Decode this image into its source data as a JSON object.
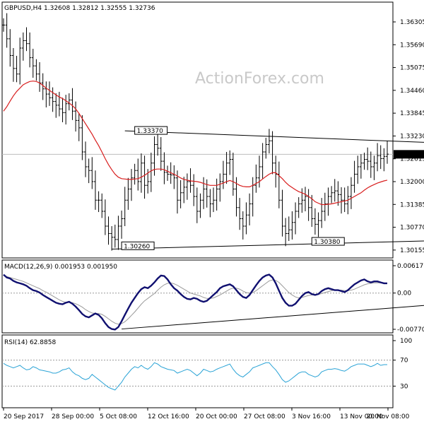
{
  "watermark": "ActionForex.com",
  "chart_data": [
    {
      "type": "line",
      "panel": "price",
      "title": "GBPUSD,H4  1.32608 1.32812 1.32555 1.32736",
      "symbol": "GBPUSD",
      "timeframe": "H4",
      "ohlc": {
        "open": 1.32608,
        "high": 1.32812,
        "low": 1.32555,
        "close": 1.32736
      },
      "current_price_label": "1.32736",
      "ylim": [
        1.3,
        1.368
      ],
      "y_ticks": [
        "1.36305",
        "1.35690",
        "1.35075",
        "1.34460",
        "1.33845",
        "1.33230",
        "1.32615",
        "1.32000",
        "1.31385",
        "1.30770",
        "1.30155"
      ],
      "x_ticks": [
        "20 Sep 2017",
        "28 Sep 00:00",
        "5 Oct 08:00",
        "12 Oct 16:00",
        "20 Oct 00:00",
        "27 Oct 08:00",
        "3 Nov 16:00",
        "13 Nov 00:00",
        "20 Nov 08:00"
      ],
      "annotations": [
        {
          "text": "1.33370",
          "x": 40,
          "y": 1.3337
        },
        {
          "text": "1.30260",
          "x": 36,
          "y": 1.3026
        },
        {
          "text": "1.30380",
          "x": 94,
          "y": 1.3038
        }
      ],
      "trendlines": [
        {
          "name": "upper",
          "points": [
            [
              37,
              1.3337
            ],
            [
              137,
              1.3303
            ]
          ]
        },
        {
          "name": "lower",
          "points": [
            [
              33,
              1.3018
            ],
            [
              137,
              1.3042
            ]
          ]
        }
      ],
      "price_series": [
        1.3622,
        1.3585,
        1.354,
        1.3505,
        1.349,
        1.356,
        1.358,
        1.3572,
        1.3534,
        1.3512,
        1.349,
        1.3466,
        1.345,
        1.3436,
        1.3426,
        1.3416,
        1.3406,
        1.3396,
        1.3386,
        1.341,
        1.342,
        1.339,
        1.3365,
        1.3345,
        1.328,
        1.324,
        1.323,
        1.32,
        1.315,
        1.315,
        1.312,
        1.308,
        1.306,
        1.305,
        1.3044,
        1.308,
        1.31,
        1.315,
        1.318,
        1.321,
        1.323,
        1.32,
        1.325,
        1.319,
        1.32,
        1.325,
        1.33,
        1.329,
        1.3255,
        1.3225,
        1.322,
        1.3218,
        1.321,
        1.315,
        1.317,
        1.3185,
        1.32,
        1.319,
        1.316,
        1.312,
        1.315,
        1.318,
        1.316,
        1.314,
        1.315,
        1.318,
        1.32,
        1.322,
        1.325,
        1.326,
        1.318,
        1.313,
        1.31,
        1.308,
        1.311,
        1.314,
        1.319,
        1.321,
        1.324,
        1.328,
        1.33,
        1.331,
        1.325,
        1.322,
        1.315,
        1.308,
        1.306,
        1.307,
        1.309,
        1.312,
        1.314,
        1.315,
        1.316,
        1.313,
        1.31,
        1.3085,
        1.3095,
        1.312,
        1.314,
        1.316,
        1.317,
        1.3175,
        1.3165,
        1.315,
        1.314,
        1.316,
        1.319,
        1.322,
        1.324,
        1.325,
        1.326,
        1.3255,
        1.324,
        1.325,
        1.327,
        1.3262,
        1.3268,
        1.3274
      ],
      "ma_series": [
        1.339,
        1.3402,
        1.3417,
        1.3431,
        1.3443,
        1.3452,
        1.3461,
        1.3466,
        1.347,
        1.3471,
        1.347,
        1.3466,
        1.3459,
        1.3452,
        1.3446,
        1.344,
        1.3434,
        1.3428,
        1.3424,
        1.3418,
        1.3412,
        1.3405,
        1.3396,
        1.3384,
        1.337,
        1.3356,
        1.3342,
        1.3328,
        1.3312,
        1.3297,
        1.328,
        1.3262,
        1.3246,
        1.3232,
        1.322,
        1.3212,
        1.3208,
        1.3207,
        1.3206,
        1.3206,
        1.3207,
        1.3208,
        1.3212,
        1.3217,
        1.3223,
        1.3229,
        1.3233,
        1.3234,
        1.3234,
        1.3232,
        1.3228,
        1.3224,
        1.322,
        1.3215,
        1.321,
        1.3206,
        1.3204,
        1.3202,
        1.3201,
        1.32,
        1.3198,
        1.3195,
        1.3192,
        1.319,
        1.319,
        1.319,
        1.3193,
        1.3196,
        1.32,
        1.3203,
        1.32,
        1.3195,
        1.319,
        1.3187,
        1.3186,
        1.3186,
        1.319,
        1.3195,
        1.32,
        1.3207,
        1.3214,
        1.322,
        1.3224,
        1.3224,
        1.3216,
        1.3208,
        1.3198,
        1.319,
        1.3184,
        1.3178,
        1.3173,
        1.317,
        1.3166,
        1.316,
        1.3154,
        1.3146,
        1.3142,
        1.3138,
        1.3138,
        1.3139,
        1.314,
        1.3142,
        1.3144,
        1.3146,
        1.3148,
        1.315,
        1.3155,
        1.316,
        1.3165,
        1.317,
        1.3177,
        1.3183,
        1.3188,
        1.3192,
        1.3196,
        1.3199,
        1.3202,
        1.3204
      ]
    },
    {
      "type": "line",
      "panel": "macd",
      "title": "MACD(12,26,9) 0.001953 0.001950",
      "y_ticks": [
        "0.006177",
        "0.00",
        "-0.007704"
      ],
      "ylim": [
        -0.0079,
        0.0065
      ],
      "macd_series": [
        0.0038,
        0.0032,
        0.003,
        0.0025,
        0.0022,
        0.002,
        0.0018,
        0.0015,
        0.001,
        0.0006,
        0.0004,
        0.0001,
        -0.0004,
        -0.0008,
        -0.0012,
        -0.0016,
        -0.002,
        -0.0022,
        -0.0023,
        -0.002,
        -0.0018,
        -0.0022,
        -0.0028,
        -0.0035,
        -0.0043,
        -0.0048,
        -0.005,
        -0.0046,
        -0.0042,
        -0.0045,
        -0.0052,
        -0.0062,
        -0.007,
        -0.0074,
        -0.0075,
        -0.007,
        -0.0058,
        -0.0045,
        -0.0032,
        -0.002,
        -0.001,
        0.0,
        0.0008,
        0.0012,
        0.001,
        0.0015,
        0.0022,
        0.003,
        0.0036,
        0.0035,
        0.0028,
        0.0018,
        0.001,
        0.0005,
        -0.0002,
        -0.0008,
        -0.0012,
        -0.0013,
        -0.001,
        -0.0012,
        -0.0016,
        -0.0018,
        -0.0016,
        -0.001,
        -0.0004,
        0.0002,
        0.001,
        0.0014,
        0.0016,
        0.0018,
        0.0014,
        0.0006,
        -0.0002,
        -0.0008,
        -0.001,
        -0.0004,
        0.0006,
        0.0016,
        0.0025,
        0.0032,
        0.0036,
        0.0038,
        0.0032,
        0.002,
        0.0005,
        -0.001,
        -0.002,
        -0.0026,
        -0.0026,
        -0.0022,
        -0.0014,
        -0.0006,
        0.0,
        0.0002,
        -0.0002,
        -0.0004,
        -0.0002,
        0.0004,
        0.0008,
        0.001,
        0.0008,
        0.0006,
        0.0006,
        0.0004,
        0.0002,
        0.0006,
        0.0012,
        0.0018,
        0.0022,
        0.0026,
        0.0028,
        0.0024,
        0.0022,
        0.0024,
        0.0024,
        0.0022,
        0.002,
        0.002
      ],
      "signal_series": [
        0.0036,
        0.0034,
        0.0032,
        0.003,
        0.0028,
        0.0026,
        0.0024,
        0.0021,
        0.0018,
        0.0015,
        0.0012,
        0.0009,
        0.0005,
        0.0002,
        -0.0002,
        -0.0006,
        -0.001,
        -0.0014,
        -0.0017,
        -0.0019,
        -0.0019,
        -0.002,
        -0.0022,
        -0.0025,
        -0.0029,
        -0.0034,
        -0.0038,
        -0.0041,
        -0.0042,
        -0.0042,
        -0.0044,
        -0.0048,
        -0.0053,
        -0.0058,
        -0.0062,
        -0.0064,
        -0.0063,
        -0.0059,
        -0.0053,
        -0.0046,
        -0.0039,
        -0.0031,
        -0.0023,
        -0.0016,
        -0.0011,
        -0.0006,
        -0.0001,
        0.0006,
        0.0012,
        0.0017,
        0.002,
        0.0021,
        0.0019,
        0.0016,
        0.0012,
        0.0008,
        0.0004,
        0.0,
        -0.0002,
        -0.0004,
        -0.0006,
        -0.0009,
        -0.0011,
        -0.0011,
        -0.001,
        -0.0007,
        -0.0004,
        0.0,
        0.0004,
        0.0008,
        0.001,
        0.001,
        0.0008,
        0.0004,
        0.0001,
        0.0,
        0.0001,
        0.0005,
        0.001,
        0.0015,
        0.002,
        0.0025,
        0.0027,
        0.0026,
        0.0022,
        0.0015,
        0.0008,
        0.0001,
        -0.0004,
        -0.0008,
        -0.001,
        -0.0009,
        -0.0007,
        -0.0005,
        -0.0004,
        -0.0004,
        -0.0003,
        -0.0001,
        0.0001,
        0.0003,
        0.0005,
        0.0006,
        0.0006,
        0.0006,
        0.0005,
        0.0005,
        0.0006,
        0.0008,
        0.0011,
        0.0014,
        0.0017,
        0.0019,
        0.002,
        0.0021,
        0.0021,
        0.0021,
        0.0021,
        0.002
      ],
      "trendline": {
        "points": [
          [
            36,
            -0.0074
          ],
          [
            137,
            -0.0021
          ]
        ]
      }
    },
    {
      "type": "line",
      "panel": "rsi",
      "title": "RSI(14) 62.8858",
      "y_ticks": [
        "100",
        "70",
        "30",
        "0"
      ],
      "ylim": [
        0,
        100
      ],
      "levels": [
        70,
        30
      ],
      "rsi_series": [
        65,
        62,
        60,
        58,
        60,
        62,
        58,
        55,
        56,
        60,
        58,
        55,
        54,
        53,
        52,
        50,
        50,
        52,
        55,
        56,
        58,
        52,
        48,
        46,
        42,
        40,
        42,
        48,
        44,
        40,
        36,
        32,
        28,
        26,
        24,
        30,
        36,
        44,
        50,
        56,
        60,
        58,
        62,
        58,
        56,
        60,
        66,
        64,
        60,
        58,
        56,
        55,
        54,
        50,
        52,
        54,
        56,
        54,
        50,
        46,
        50,
        56,
        54,
        52,
        53,
        56,
        58,
        60,
        62,
        64,
        56,
        50,
        46,
        44,
        48,
        52,
        58,
        60,
        62,
        64,
        66,
        66,
        60,
        55,
        48,
        40,
        36,
        38,
        42,
        46,
        50,
        52,
        52,
        48,
        46,
        44,
        46,
        52,
        54,
        56,
        56,
        57,
        56,
        54,
        53,
        56,
        60,
        62,
        64,
        64,
        64,
        62,
        60,
        62,
        65,
        62,
        63,
        63
      ]
    }
  ]
}
